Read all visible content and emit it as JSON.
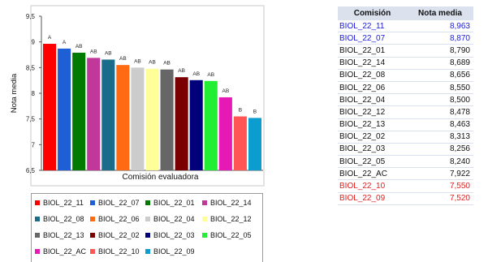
{
  "chart_data": {
    "type": "bar",
    "xlabel": "Comisión evaluadora",
    "ylabel": "Nota media",
    "ylim": [
      6.5,
      9.5
    ],
    "yticks": [
      "6,5",
      "7",
      "7,5",
      "8",
      "8,5",
      "9",
      "9,5"
    ],
    "grid": false,
    "legend_position": "bottom",
    "categories": [
      "BIOL_22_11",
      "BIOL_22_07",
      "BIOL_22_01",
      "BIOL_22_14",
      "BIOL_22_08",
      "BIOL_22_06",
      "BIOL_22_04",
      "BIOL_22_12",
      "BIOL_22_13",
      "BIOL_22_02",
      "BIOL_22_03",
      "BIOL_22_05",
      "BIOL_22_AC",
      "BIOL_22_10",
      "BIOL_22_09"
    ],
    "values": [
      8.963,
      8.87,
      8.79,
      8.689,
      8.656,
      8.55,
      8.5,
      8.478,
      8.463,
      8.313,
      8.256,
      8.24,
      7.922,
      7.55,
      7.52
    ],
    "group_labels": [
      "A",
      "A",
      "AB",
      "AB",
      "AB",
      "AB",
      "AB",
      "AB",
      "AB",
      "AB",
      "AB",
      "AB",
      "AB",
      "B",
      "B"
    ],
    "colors": [
      "#ff0000",
      "#1f5fd6",
      "#007a00",
      "#c0399a",
      "#1b6b8a",
      "#ff6a13",
      "#cccccc",
      "#ffff99",
      "#666666",
      "#7a0000",
      "#00007a",
      "#22ee33",
      "#e619b5",
      "#ff5555",
      "#0b9dcf"
    ]
  },
  "legend": {
    "rows": [
      [
        "BIOL_22_11",
        "BIOL_22_07",
        "BIOL_22_01",
        "BIOL_22_14"
      ],
      [
        "BIOL_22_08",
        "BIOL_22_06",
        "BIOL_22_04",
        "BIOL_22_12"
      ],
      [
        "BIOL_22_13",
        "BIOL_22_02",
        "BIOL_22_03",
        "BIOL_22_05"
      ],
      [
        "BIOL_22_AC",
        "BIOL_22_10",
        "BIOL_22_09"
      ]
    ],
    "row_colors": [
      [
        "#ff0000",
        "#1f5fd6",
        "#007a00",
        "#c0399a"
      ],
      [
        "#1b6b8a",
        "#ff6a13",
        "#cccccc",
        "#ffff99"
      ],
      [
        "#666666",
        "#7a0000",
        "#00007a",
        "#22ee33"
      ],
      [
        "#e619b5",
        "#ff5555",
        "#0b9dcf"
      ]
    ]
  },
  "table": {
    "headers": [
      "Comisión",
      "Nota media"
    ],
    "rows": [
      {
        "com": "BIOL_22_11",
        "nota": "8,963",
        "color": "#1a1adb"
      },
      {
        "com": "BIOL_22_07",
        "nota": "8,870",
        "color": "#1a1adb"
      },
      {
        "com": "BIOL_22_01",
        "nota": "8,790",
        "color": "#111111"
      },
      {
        "com": "BIOL_22_14",
        "nota": "8,689",
        "color": "#111111"
      },
      {
        "com": "BIOL_22_08",
        "nota": "8,656",
        "color": "#111111"
      },
      {
        "com": "BIOL_22_06",
        "nota": "8,550",
        "color": "#111111"
      },
      {
        "com": "BIOL_22_04",
        "nota": "8,500",
        "color": "#111111"
      },
      {
        "com": "BIOL_22_12",
        "nota": "8,478",
        "color": "#111111"
      },
      {
        "com": "BIOL_22_13",
        "nota": "8,463",
        "color": "#111111"
      },
      {
        "com": "BIOL_22_02",
        "nota": "8,313",
        "color": "#111111"
      },
      {
        "com": "BIOL_22_03",
        "nota": "8,256",
        "color": "#111111"
      },
      {
        "com": "BIOL_22_05",
        "nota": "8,240",
        "color": "#111111"
      },
      {
        "com": "BIOL_22_AC",
        "nota": "7,922",
        "color": "#111111"
      },
      {
        "com": "BIOL_22_10",
        "nota": "7,550",
        "color": "#e02020"
      },
      {
        "com": "BIOL_22_09",
        "nota": "7,520",
        "color": "#e02020"
      }
    ]
  }
}
